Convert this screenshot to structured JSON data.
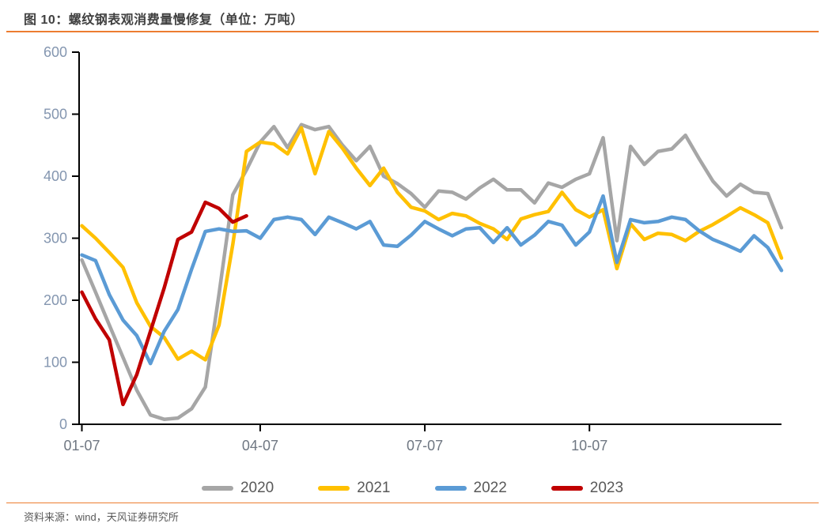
{
  "header": {
    "title": "图 10：螺纹钢表观消费量慢修复（单位：万吨）"
  },
  "footer": {
    "source": "资料来源：wind，天风证券研究所"
  },
  "colors": {
    "accent_rule": "#ED7D31",
    "title_text": "#404040",
    "y_tick_text": "#8496B0",
    "x_tick_text": "#6F7782",
    "legend_text": "#595959",
    "axis_line": "#000000"
  },
  "chart_data": {
    "type": "line",
    "title": "螺纹钢表观消费量",
    "unit": "万吨",
    "x_is_weekly": true,
    "x_tick_labels": [
      "01-07",
      "04-07",
      "07-07",
      "10-07"
    ],
    "x_tick_weeks": [
      0,
      13,
      25,
      37
    ],
    "ylim": [
      0,
      600
    ],
    "y_ticks": [
      0,
      100,
      200,
      300,
      400,
      500,
      600
    ],
    "grid": false,
    "legend_position": "bottom",
    "series": [
      {
        "name": "2020",
        "color": "#A6A6A6",
        "values": [
          265,
          213,
          160,
          108,
          55,
          15,
          8,
          10,
          25,
          60,
          210,
          370,
          410,
          455,
          480,
          446,
          483,
          475,
          480,
          450,
          425,
          448,
          400,
          388,
          372,
          350,
          376,
          374,
          363,
          381,
          395,
          378,
          378,
          357,
          389,
          382,
          395,
          404,
          462,
          296,
          448,
          419,
          440,
          444,
          466,
          428,
          392,
          368,
          387,
          374,
          372,
          317
        ]
      },
      {
        "name": "2021",
        "color": "#FFC000",
        "values": [
          320,
          300,
          277,
          253,
          196,
          158,
          140,
          105,
          118,
          104,
          160,
          290,
          440,
          455,
          452,
          436,
          478,
          404,
          472,
          445,
          413,
          385,
          413,
          374,
          350,
          344,
          330,
          340,
          336,
          324,
          315,
          298,
          331,
          338,
          343,
          374,
          346,
          334,
          346,
          251,
          323,
          298,
          308,
          306,
          296,
          311,
          322,
          335,
          349,
          338,
          325,
          268
        ]
      },
      {
        "name": "2022",
        "color": "#5B9BD5",
        "values": [
          273,
          264,
          209,
          168,
          143,
          98,
          150,
          185,
          250,
          311,
          315,
          311,
          312,
          300,
          330,
          334,
          330,
          306,
          334,
          325,
          315,
          327,
          289,
          287,
          305,
          327,
          315,
          304,
          315,
          317,
          293,
          317,
          289,
          305,
          327,
          321,
          289,
          310,
          368,
          261,
          330,
          325,
          327,
          334,
          330,
          312,
          298,
          289,
          279,
          304,
          285,
          248
        ]
      },
      {
        "name": "2023",
        "color": "#C00000",
        "values": [
          213,
          170,
          136,
          32,
          80,
          150,
          220,
          298,
          310,
          358,
          348,
          326,
          336
        ]
      }
    ]
  }
}
